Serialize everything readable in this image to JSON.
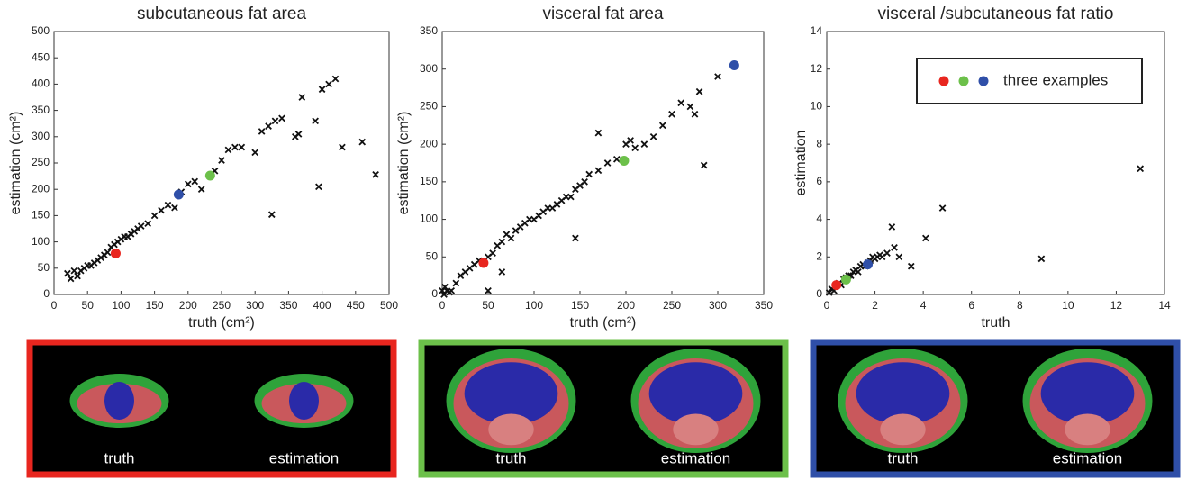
{
  "chart_data": [
    {
      "type": "scatter",
      "title": "subcutaneous fat area",
      "xlabel": "truth (cm²)",
      "ylabel": "estimation (cm²)",
      "xlim": [
        0,
        500
      ],
      "ylim": [
        0,
        500
      ],
      "xticks": [
        0,
        50,
        100,
        150,
        200,
        250,
        300,
        350,
        400,
        450,
        500
      ],
      "yticks": [
        0,
        50,
        100,
        150,
        200,
        250,
        300,
        350,
        400,
        450,
        500
      ],
      "series": [
        {
          "color": "#111111",
          "x": [
            20,
            25,
            30,
            35,
            40,
            45,
            50,
            55,
            60,
            65,
            70,
            75,
            80,
            85,
            90,
            95,
            100,
            105,
            110,
            115,
            120,
            125,
            130,
            140,
            150,
            160,
            170,
            180,
            190,
            200,
            210,
            220,
            240,
            250,
            260,
            270,
            280,
            300,
            310,
            320,
            330,
            340,
            360,
            365,
            370,
            390,
            400,
            410,
            420,
            430,
            460,
            480,
            325,
            395
          ],
          "values": [
            40,
            30,
            45,
            35,
            45,
            50,
            55,
            55,
            60,
            65,
            70,
            75,
            80,
            90,
            95,
            100,
            105,
            110,
            110,
            115,
            120,
            125,
            130,
            135,
            150,
            160,
            170,
            165,
            195,
            210,
            215,
            200,
            235,
            255,
            275,
            280,
            280,
            270,
            310,
            320,
            330,
            335,
            300,
            305,
            375,
            330,
            390,
            400,
            410,
            280,
            290,
            228,
            152,
            205
          ]
        },
        {
          "colors": [
            "#e8261f",
            "#6cc04a",
            "#2f4fa8"
          ],
          "x": [
            92,
            233,
            186
          ],
          "values": [
            78,
            226,
            190
          ]
        }
      ]
    },
    {
      "type": "scatter",
      "title": "visceral fat area",
      "xlabel": "truth (cm²)",
      "ylabel": "estimation (cm²)",
      "xlim": [
        0,
        350
      ],
      "ylim": [
        0,
        350
      ],
      "xticks": [
        0,
        50,
        100,
        150,
        200,
        250,
        300,
        350
      ],
      "yticks": [
        0,
        50,
        100,
        150,
        200,
        250,
        300,
        350
      ],
      "series": [
        {
          "color": "#111111",
          "x": [
            0,
            2,
            3,
            5,
            8,
            10,
            15,
            20,
            25,
            30,
            35,
            40,
            50,
            55,
            60,
            65,
            70,
            75,
            80,
            85,
            90,
            95,
            100,
            105,
            110,
            115,
            120,
            125,
            130,
            135,
            140,
            145,
            150,
            155,
            160,
            170,
            180,
            190,
            200,
            205,
            210,
            220,
            230,
            240,
            250,
            260,
            270,
            275,
            280,
            285,
            300,
            50,
            145,
            65,
            170
          ],
          "values": [
            5,
            0,
            10,
            5,
            3,
            5,
            15,
            25,
            30,
            35,
            40,
            45,
            50,
            55,
            65,
            70,
            80,
            75,
            85,
            90,
            95,
            100,
            100,
            105,
            110,
            115,
            115,
            120,
            125,
            130,
            130,
            140,
            145,
            150,
            160,
            165,
            175,
            180,
            200,
            205,
            195,
            200,
            210,
            225,
            240,
            255,
            250,
            240,
            270,
            172,
            290,
            5,
            75,
            30,
            215
          ]
        },
        {
          "colors": [
            "#e8261f",
            "#6cc04a",
            "#2f4fa8"
          ],
          "x": [
            45,
            198,
            318
          ],
          "values": [
            42,
            178,
            305
          ]
        }
      ]
    },
    {
      "type": "scatter",
      "title": "visceral /subcutaneous fat ratio",
      "xlabel": "truth",
      "ylabel": "estimation",
      "xlim": [
        0,
        14
      ],
      "ylim": [
        0,
        14
      ],
      "xticks": [
        0,
        2,
        4,
        6,
        8,
        10,
        12,
        14
      ],
      "yticks": [
        0,
        2,
        4,
        6,
        8,
        10,
        12,
        14
      ],
      "legend": "upper right",
      "series": [
        {
          "color": "#111111",
          "x": [
            0.1,
            0.2,
            0.3,
            0.4,
            0.5,
            0.6,
            0.7,
            0.8,
            0.9,
            1.0,
            1.1,
            1.2,
            1.3,
            1.4,
            1.5,
            1.6,
            1.7,
            1.8,
            1.9,
            2.0,
            2.1,
            2.2,
            2.3,
            2.5,
            2.7,
            2.8,
            3.0,
            3.5,
            4.1,
            4.8,
            8.9,
            13.0
          ],
          "values": [
            0.1,
            0.3,
            0.2,
            0.5,
            0.6,
            0.5,
            0.8,
            0.9,
            1.0,
            1.0,
            1.2,
            1.3,
            1.2,
            1.5,
            1.6,
            1.5,
            1.7,
            1.8,
            2.0,
            1.9,
            2.0,
            2.1,
            2.0,
            2.2,
            3.6,
            2.5,
            2.0,
            1.5,
            3.0,
            4.6,
            1.9,
            6.7
          ]
        },
        {
          "name": "three examples",
          "colors": [
            "#e8261f",
            "#6cc04a",
            "#2f4fa8"
          ],
          "x": [
            0.4,
            0.8,
            1.7
          ],
          "values": [
            0.5,
            0.8,
            1.6
          ]
        }
      ]
    }
  ],
  "panels": [
    {
      "border": "#e8261f",
      "labels": [
        "truth",
        "estimation"
      ]
    },
    {
      "border": "#6cc04a",
      "labels": [
        "truth",
        "estimation"
      ]
    },
    {
      "border": "#2f4fa8",
      "labels": [
        "truth",
        "estimation"
      ]
    }
  ]
}
